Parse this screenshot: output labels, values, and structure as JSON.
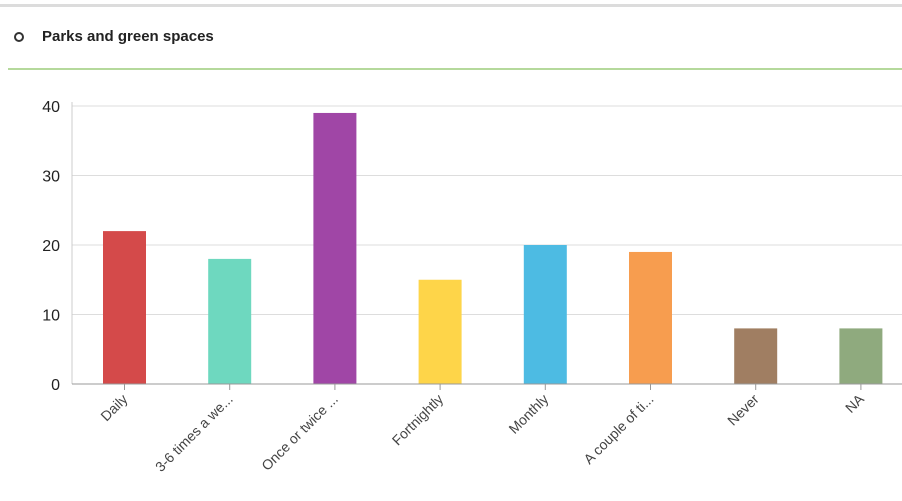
{
  "panel": {
    "title": "Parks and green spaces",
    "bullet_icon": "circle-outline-icon",
    "divider_color": "#b5d99c"
  },
  "chart_data": {
    "type": "bar",
    "title": "Parks and green spaces",
    "xlabel": "",
    "ylabel": "",
    "ylim": [
      0,
      40
    ],
    "yticks": [
      0,
      10,
      20,
      30,
      40
    ],
    "grid": true,
    "legend": "none",
    "categories": [
      "Daily",
      "3-6 times a we...",
      "Once or twice ...",
      "Fortnightly",
      "Monthly",
      "A couple of ti...",
      "Never",
      "NA"
    ],
    "values": [
      22,
      18,
      39,
      15,
      20,
      19,
      8,
      8
    ],
    "colors": [
      "#d44a4a",
      "#6ed8bf",
      "#a046a6",
      "#fed549",
      "#4dbbe3",
      "#f79d4f",
      "#a07e62",
      "#8faa7e"
    ]
  }
}
